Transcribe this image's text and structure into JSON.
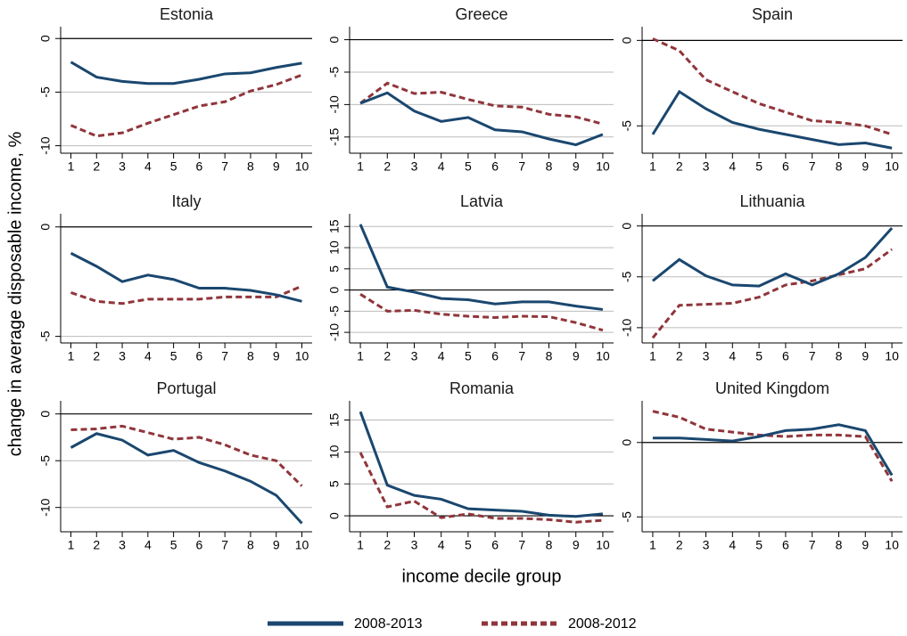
{
  "chart_data": [
    {
      "type": "line",
      "title": "Estonia",
      "x": [
        1,
        2,
        3,
        4,
        5,
        6,
        7,
        8,
        9,
        10
      ],
      "xlim": [
        0.6,
        10.4
      ],
      "xticks": [
        1,
        2,
        3,
        4,
        5,
        6,
        7,
        8,
        9,
        10
      ],
      "ylim": [
        -10.7,
        1.1
      ],
      "yticks": [
        -10,
        -5,
        0
      ],
      "grid": true,
      "series": [
        {
          "name": "2008-2013",
          "color": "#1a476f",
          "values": [
            -2.2,
            -3.6,
            -4.0,
            -4.2,
            -4.2,
            -3.8,
            -3.3,
            -3.2,
            -2.7,
            -2.3
          ]
        },
        {
          "name": "2008-2012",
          "color": "#90353b",
          "values": [
            -8.1,
            -9.1,
            -8.8,
            -7.9,
            -7.1,
            -6.3,
            -5.9,
            -4.9,
            -4.3,
            -3.4
          ]
        }
      ]
    },
    {
      "type": "line",
      "title": "Greece",
      "x": [
        1,
        2,
        3,
        4,
        5,
        6,
        7,
        8,
        9,
        10
      ],
      "xlim": [
        0.6,
        10.4
      ],
      "xticks": [
        1,
        2,
        3,
        4,
        5,
        6,
        7,
        8,
        9,
        10
      ],
      "ylim": [
        -17.5,
        2
      ],
      "yticks": [
        -15,
        -10,
        -5,
        0
      ],
      "grid": true,
      "series": [
        {
          "name": "2008-2013",
          "color": "#1a476f",
          "values": [
            -9.8,
            -8.2,
            -11,
            -12.6,
            -12,
            -13.9,
            -14.2,
            -15.3,
            -16.2,
            -14.6
          ]
        },
        {
          "name": "2008-2012",
          "color": "#90353b",
          "values": [
            -9.8,
            -6.7,
            -8.3,
            -8.1,
            -9.2,
            -10.2,
            -10.4,
            -11.5,
            -11.9,
            -13
          ]
        }
      ]
    },
    {
      "type": "line",
      "title": "Spain",
      "x": [
        1,
        2,
        3,
        4,
        5,
        6,
        7,
        8,
        9,
        10
      ],
      "xlim": [
        0.6,
        10.4
      ],
      "xticks": [
        1,
        2,
        3,
        4,
        5,
        6,
        7,
        8,
        9,
        10
      ],
      "ylim": [
        -6.6,
        0.8
      ],
      "yticks": [
        -5,
        0
      ],
      "grid": true,
      "series": [
        {
          "name": "2008-2013",
          "color": "#1a476f",
          "values": [
            -5.5,
            -3,
            -4,
            -4.8,
            -5.2,
            -5.5,
            -5.8,
            -6.1,
            -6.0,
            -6.3
          ]
        },
        {
          "name": "2008-2012",
          "color": "#90353b",
          "values": [
            0.1,
            -0.6,
            -2.3,
            -3,
            -3.7,
            -4.2,
            -4.7,
            -4.8,
            -5,
            -5.5
          ]
        }
      ]
    },
    {
      "type": "line",
      "title": "Italy",
      "x": [
        1,
        2,
        3,
        4,
        5,
        6,
        7,
        8,
        9,
        10
      ],
      "xlim": [
        0.6,
        10.4
      ],
      "xticks": [
        1,
        2,
        3,
        4,
        5,
        6,
        7,
        8,
        9,
        10
      ],
      "ylim": [
        -5.3,
        0.6
      ],
      "yticks": [
        -5,
        0
      ],
      "grid": true,
      "series": [
        {
          "name": "2008-2013",
          "color": "#1a476f",
          "values": [
            -1.2,
            -1.8,
            -2.5,
            -2.2,
            -2.4,
            -2.8,
            -2.8,
            -2.9,
            -3.1,
            -3.4
          ]
        },
        {
          "name": "2008-2012",
          "color": "#90353b",
          "values": [
            -3,
            -3.4,
            -3.5,
            -3.3,
            -3.3,
            -3.3,
            -3.2,
            -3.2,
            -3.2,
            -2.7
          ]
        }
      ]
    },
    {
      "type": "line",
      "title": "Latvia",
      "x": [
        1,
        2,
        3,
        4,
        5,
        6,
        7,
        8,
        9,
        10
      ],
      "xlim": [
        0.6,
        10.4
      ],
      "xticks": [
        1,
        2,
        3,
        4,
        5,
        6,
        7,
        8,
        9,
        10
      ],
      "ylim": [
        -12.5,
        18
      ],
      "yticks": [
        -10,
        -5,
        0,
        5,
        10,
        15
      ],
      "grid": true,
      "series": [
        {
          "name": "2008-2013",
          "color": "#1a476f",
          "values": [
            15.5,
            0.7,
            -0.5,
            -2,
            -2.3,
            -3.3,
            -2.8,
            -2.8,
            -3.8,
            -4.6
          ]
        },
        {
          "name": "2008-2012",
          "color": "#90353b",
          "values": [
            -1,
            -5,
            -4.8,
            -5.7,
            -6.2,
            -6.5,
            -6.2,
            -6.3,
            -7.7,
            -9.5
          ]
        }
      ]
    },
    {
      "type": "line",
      "title": "Lithuania",
      "x": [
        1,
        2,
        3,
        4,
        5,
        6,
        7,
        8,
        9,
        10
      ],
      "xlim": [
        0.6,
        10.4
      ],
      "xticks": [
        1,
        2,
        3,
        4,
        5,
        6,
        7,
        8,
        9,
        10
      ],
      "ylim": [
        -11.5,
        1.2
      ],
      "yticks": [
        -10,
        -5,
        0
      ],
      "grid": true,
      "series": [
        {
          "name": "2008-2013",
          "color": "#1a476f",
          "values": [
            -5.4,
            -3.3,
            -4.9,
            -5.8,
            -5.9,
            -4.7,
            -5.8,
            -4.7,
            -3.1,
            -0.2
          ]
        },
        {
          "name": "2008-2012",
          "color": "#90353b",
          "values": [
            -11,
            -7.8,
            -7.7,
            -7.6,
            -7.0,
            -5.8,
            -5.4,
            -4.8,
            -4.2,
            -2.3
          ]
        }
      ]
    },
    {
      "type": "line",
      "title": "Portugal",
      "x": [
        1,
        2,
        3,
        4,
        5,
        6,
        7,
        8,
        9,
        10
      ],
      "xlim": [
        0.6,
        10.4
      ],
      "xticks": [
        1,
        2,
        3,
        4,
        5,
        6,
        7,
        8,
        9,
        10
      ],
      "ylim": [
        -12.6,
        1.4
      ],
      "yticks": [
        -10,
        -5,
        0
      ],
      "grid": true,
      "series": [
        {
          "name": "2008-2013",
          "color": "#1a476f",
          "values": [
            -3.6,
            -2.1,
            -2.8,
            -4.4,
            -3.9,
            -5.2,
            -6.1,
            -7.2,
            -8.7,
            -11.7
          ]
        },
        {
          "name": "2008-2012",
          "color": "#90353b",
          "values": [
            -1.7,
            -1.6,
            -1.3,
            -2,
            -2.7,
            -2.5,
            -3.3,
            -4.4,
            -5,
            -7.7
          ]
        }
      ]
    },
    {
      "type": "line",
      "title": "Romania",
      "x": [
        1,
        2,
        3,
        4,
        5,
        6,
        7,
        8,
        9,
        10
      ],
      "xlim": [
        0.6,
        10.4
      ],
      "xticks": [
        1,
        2,
        3,
        4,
        5,
        6,
        7,
        8,
        9,
        10
      ],
      "ylim": [
        -2.5,
        18
      ],
      "yticks": [
        0,
        5,
        10,
        15
      ],
      "grid": true,
      "series": [
        {
          "name": "2008-2013",
          "color": "#1a476f",
          "values": [
            16.3,
            4.8,
            3.2,
            2.6,
            1.1,
            0.9,
            0.7,
            0.1,
            -0.1,
            0.3
          ]
        },
        {
          "name": "2008-2012",
          "color": "#90353b",
          "values": [
            9.9,
            1.4,
            2.3,
            -0.3,
            0.3,
            -0.4,
            -0.4,
            -0.6,
            -1,
            -0.7
          ]
        }
      ]
    },
    {
      "type": "line",
      "title": "United Kingdom",
      "x": [
        1,
        2,
        3,
        4,
        5,
        6,
        7,
        8,
        9,
        10
      ],
      "xlim": [
        0.6,
        10.4
      ],
      "xticks": [
        1,
        2,
        3,
        4,
        5,
        6,
        7,
        8,
        9,
        10
      ],
      "ylim": [
        -6,
        2.8
      ],
      "yticks": [
        -5,
        0
      ],
      "grid": true,
      "series": [
        {
          "name": "2008-2013",
          "color": "#1a476f",
          "values": [
            0.3,
            0.3,
            0.2,
            0.1,
            0.4,
            0.8,
            0.9,
            1.2,
            0.8,
            -2.2
          ]
        },
        {
          "name": "2008-2012",
          "color": "#90353b",
          "values": [
            2.1,
            1.7,
            0.9,
            0.7,
            0.5,
            0.4,
            0.5,
            0.5,
            0.4,
            -2.6
          ]
        }
      ]
    }
  ],
  "ylabel": "change in average disposable income, %",
  "xlabel": "income decile group"
}
